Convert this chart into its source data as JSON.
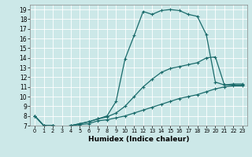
{
  "bg_color": "#cce8e8",
  "line_color": "#1a6b6b",
  "xlabel": "Humidex (Indice chaleur)",
  "xlim": [
    -0.5,
    23.5
  ],
  "ylim": [
    7,
    19.5
  ],
  "yticks": [
    7,
    8,
    9,
    10,
    11,
    12,
    13,
    14,
    15,
    16,
    17,
    18,
    19
  ],
  "xticks": [
    0,
    1,
    2,
    3,
    4,
    5,
    6,
    7,
    8,
    9,
    10,
    11,
    12,
    13,
    14,
    15,
    16,
    17,
    18,
    19,
    20,
    21,
    22,
    23
  ],
  "curve1_x": [
    0,
    1,
    2,
    3,
    4,
    5,
    6,
    7,
    8,
    9,
    10,
    11,
    12,
    13,
    14,
    15,
    16,
    17,
    18,
    19,
    20,
    21,
    22,
    23
  ],
  "curve1_y": [
    8.0,
    7.0,
    7.0,
    6.8,
    7.0,
    7.2,
    7.4,
    7.7,
    8.0,
    9.5,
    13.9,
    16.3,
    18.8,
    18.5,
    18.9,
    19.0,
    18.9,
    18.5,
    18.3,
    16.4,
    11.5,
    11.2,
    11.3,
    11.3
  ],
  "curve2_x": [
    0,
    1,
    2,
    3,
    4,
    5,
    6,
    7,
    8,
    9,
    10,
    11,
    12,
    13,
    14,
    15,
    16,
    17,
    18,
    19,
    20,
    21,
    22,
    23
  ],
  "curve2_y": [
    8.0,
    7.0,
    7.0,
    6.8,
    7.0,
    7.2,
    7.4,
    7.7,
    7.9,
    8.3,
    9.0,
    10.0,
    11.0,
    11.8,
    12.5,
    12.9,
    13.1,
    13.3,
    13.5,
    14.0,
    14.1,
    11.2,
    11.2,
    11.2
  ],
  "curve3_x": [
    0,
    1,
    2,
    3,
    4,
    5,
    6,
    7,
    8,
    9,
    10,
    11,
    12,
    13,
    14,
    15,
    16,
    17,
    18,
    19,
    20,
    21,
    22,
    23
  ],
  "curve3_y": [
    8.0,
    7.0,
    7.0,
    6.8,
    7.0,
    7.1,
    7.2,
    7.5,
    7.6,
    7.8,
    8.0,
    8.3,
    8.6,
    8.9,
    9.2,
    9.5,
    9.8,
    10.0,
    10.2,
    10.5,
    10.8,
    11.0,
    11.1,
    11.1
  ],
  "markersize": 3,
  "linewidth": 0.9,
  "grid_color": "#ffffff",
  "label_fontsize": 6.5,
  "tick_fontsize": 5.5,
  "xtick_fontsize": 4.8
}
